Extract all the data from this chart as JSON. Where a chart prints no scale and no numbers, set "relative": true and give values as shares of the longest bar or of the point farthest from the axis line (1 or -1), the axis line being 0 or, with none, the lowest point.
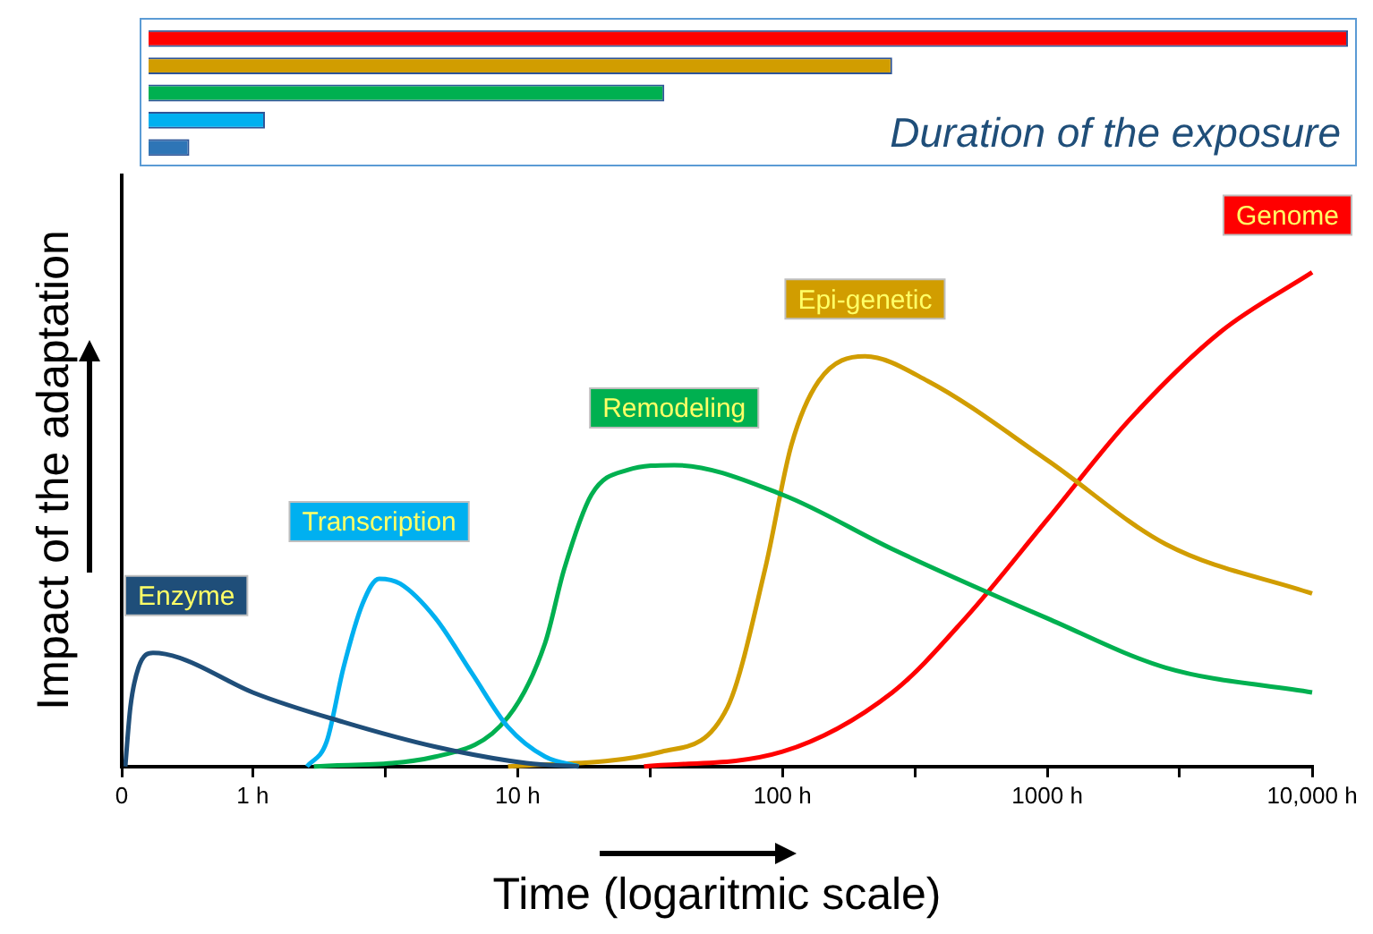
{
  "chart_data": [
    {
      "type": "line",
      "relative": true,
      "xlabel": "Time (logaritmic scale)",
      "ylabel": "Impact of the adaptation",
      "log": "x",
      "tick_labels": "x",
      "xlim": [
        0.32,
        10000
      ],
      "xticks": [
        {
          "value": 0.32,
          "label": "0"
        },
        {
          "value": 1,
          "label": "1 h"
        },
        {
          "value": 3.16,
          "label": null
        },
        {
          "value": 10,
          "label": "10 h"
        },
        {
          "value": 31.6,
          "label": null
        },
        {
          "value": 100,
          "label": "100 h"
        },
        {
          "value": 316,
          "label": null
        },
        {
          "value": 1000,
          "label": "1000 h"
        },
        {
          "value": 3160,
          "label": null
        },
        {
          "value": 10000,
          "label": "10,000 h"
        }
      ],
      "series": [
        {
          "name": "Enzyme",
          "color": "#1f4e79",
          "x": [
            0.33,
            0.345,
            0.37,
            0.42,
            0.53,
            1,
            2.2,
            4.9,
            10.8,
            17
          ],
          "values": [
            0,
            0.12,
            0.2,
            0.23,
            0.22,
            0.15,
            0.09,
            0.04,
            0.007,
            0
          ]
        },
        {
          "name": "Transcription",
          "color": "#00b0f0",
          "x": [
            1.6,
            1.9,
            2.2,
            2.6,
            3.0,
            3.6,
            4.9,
            6.7,
            9.2,
            12.7,
            17
          ],
          "values": [
            0,
            0.05,
            0.2,
            0.33,
            0.38,
            0.37,
            0.3,
            0.19,
            0.08,
            0.02,
            0
          ]
        },
        {
          "name": "Remodeling",
          "color": "#00b050",
          "x": [
            1.7,
            4.9,
            9.2,
            12.7,
            15,
            19,
            26,
            39,
            100,
            260,
            1000,
            2800,
            10000
          ],
          "values": [
            0,
            0.02,
            0.1,
            0.25,
            0.4,
            0.55,
            0.6,
            0.61,
            0.55,
            0.44,
            0.3,
            0.2,
            0.15
          ]
        },
        {
          "name": "Epi-genetic",
          "color": "#d19d00",
          "x": [
            9.2,
            35,
            62,
            86,
            108,
            137,
            205,
            354,
            1000,
            2800,
            10000
          ],
          "values": [
            0,
            0.03,
            0.12,
            0.4,
            0.65,
            0.78,
            0.83,
            0.78,
            0.62,
            0.45,
            0.35
          ]
        },
        {
          "name": "Genome",
          "color": "#ff0000",
          "x": [
            30,
            100,
            260,
            490,
            1000,
            2030,
            4520,
            10000
          ],
          "values": [
            0,
            0.03,
            0.15,
            0.3,
            0.5,
            0.7,
            0.88,
            1
          ]
        }
      ]
    },
    {
      "type": "bar",
      "orientation": "horizontal",
      "relative": true,
      "categories": [
        null,
        null,
        null,
        null,
        null
      ],
      "values": [
        1,
        0.62,
        0.43,
        0.097,
        0.034
      ],
      "colors": [
        "#ff0000",
        "#d19d00",
        "#00b050",
        "#00b0f0",
        "#2e75b6"
      ],
      "annotations": [
        "Duration of the exposure"
      ]
    }
  ]
}
